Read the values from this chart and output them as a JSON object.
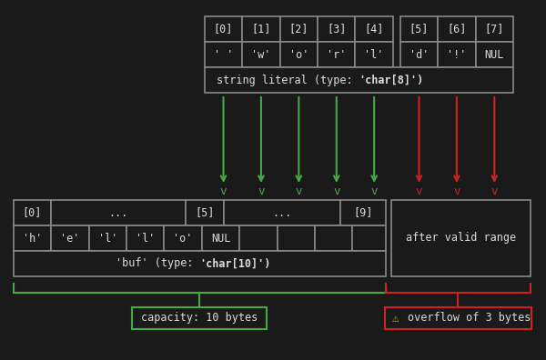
{
  "bg_color": "#1a1a1a",
  "cell_border_color": "#888888",
  "green_color": "#44aa44",
  "red_color": "#cc2222",
  "white_color": "#dddddd",
  "yellow_color": "#ddaa00",
  "string_indices": [
    "[0]",
    "[1]",
    "[2]",
    "[3]",
    "[4]",
    "[5]",
    "[6]",
    "[7]"
  ],
  "string_values": [
    "' '",
    "'w'",
    "'o'",
    "'r'",
    "'l'",
    "'d'",
    "'!'",
    "NUL"
  ],
  "string_label": "string literal (type: 'char[8]')",
  "buf_indices_left": [
    "[0]",
    "...",
    "[5]",
    "...",
    "[9]"
  ],
  "buf_values_left": [
    "'h'",
    "'e'",
    "'l'",
    "'l'",
    "'o'",
    "NUL"
  ],
  "buf_label": "'buf' (type: 'char[10]')",
  "after_valid_label": "after valid range",
  "capacity_label": "capacity: 10 bytes",
  "overflow_label": "⚠  overflow of 3 bytes",
  "font_family": "monospace"
}
